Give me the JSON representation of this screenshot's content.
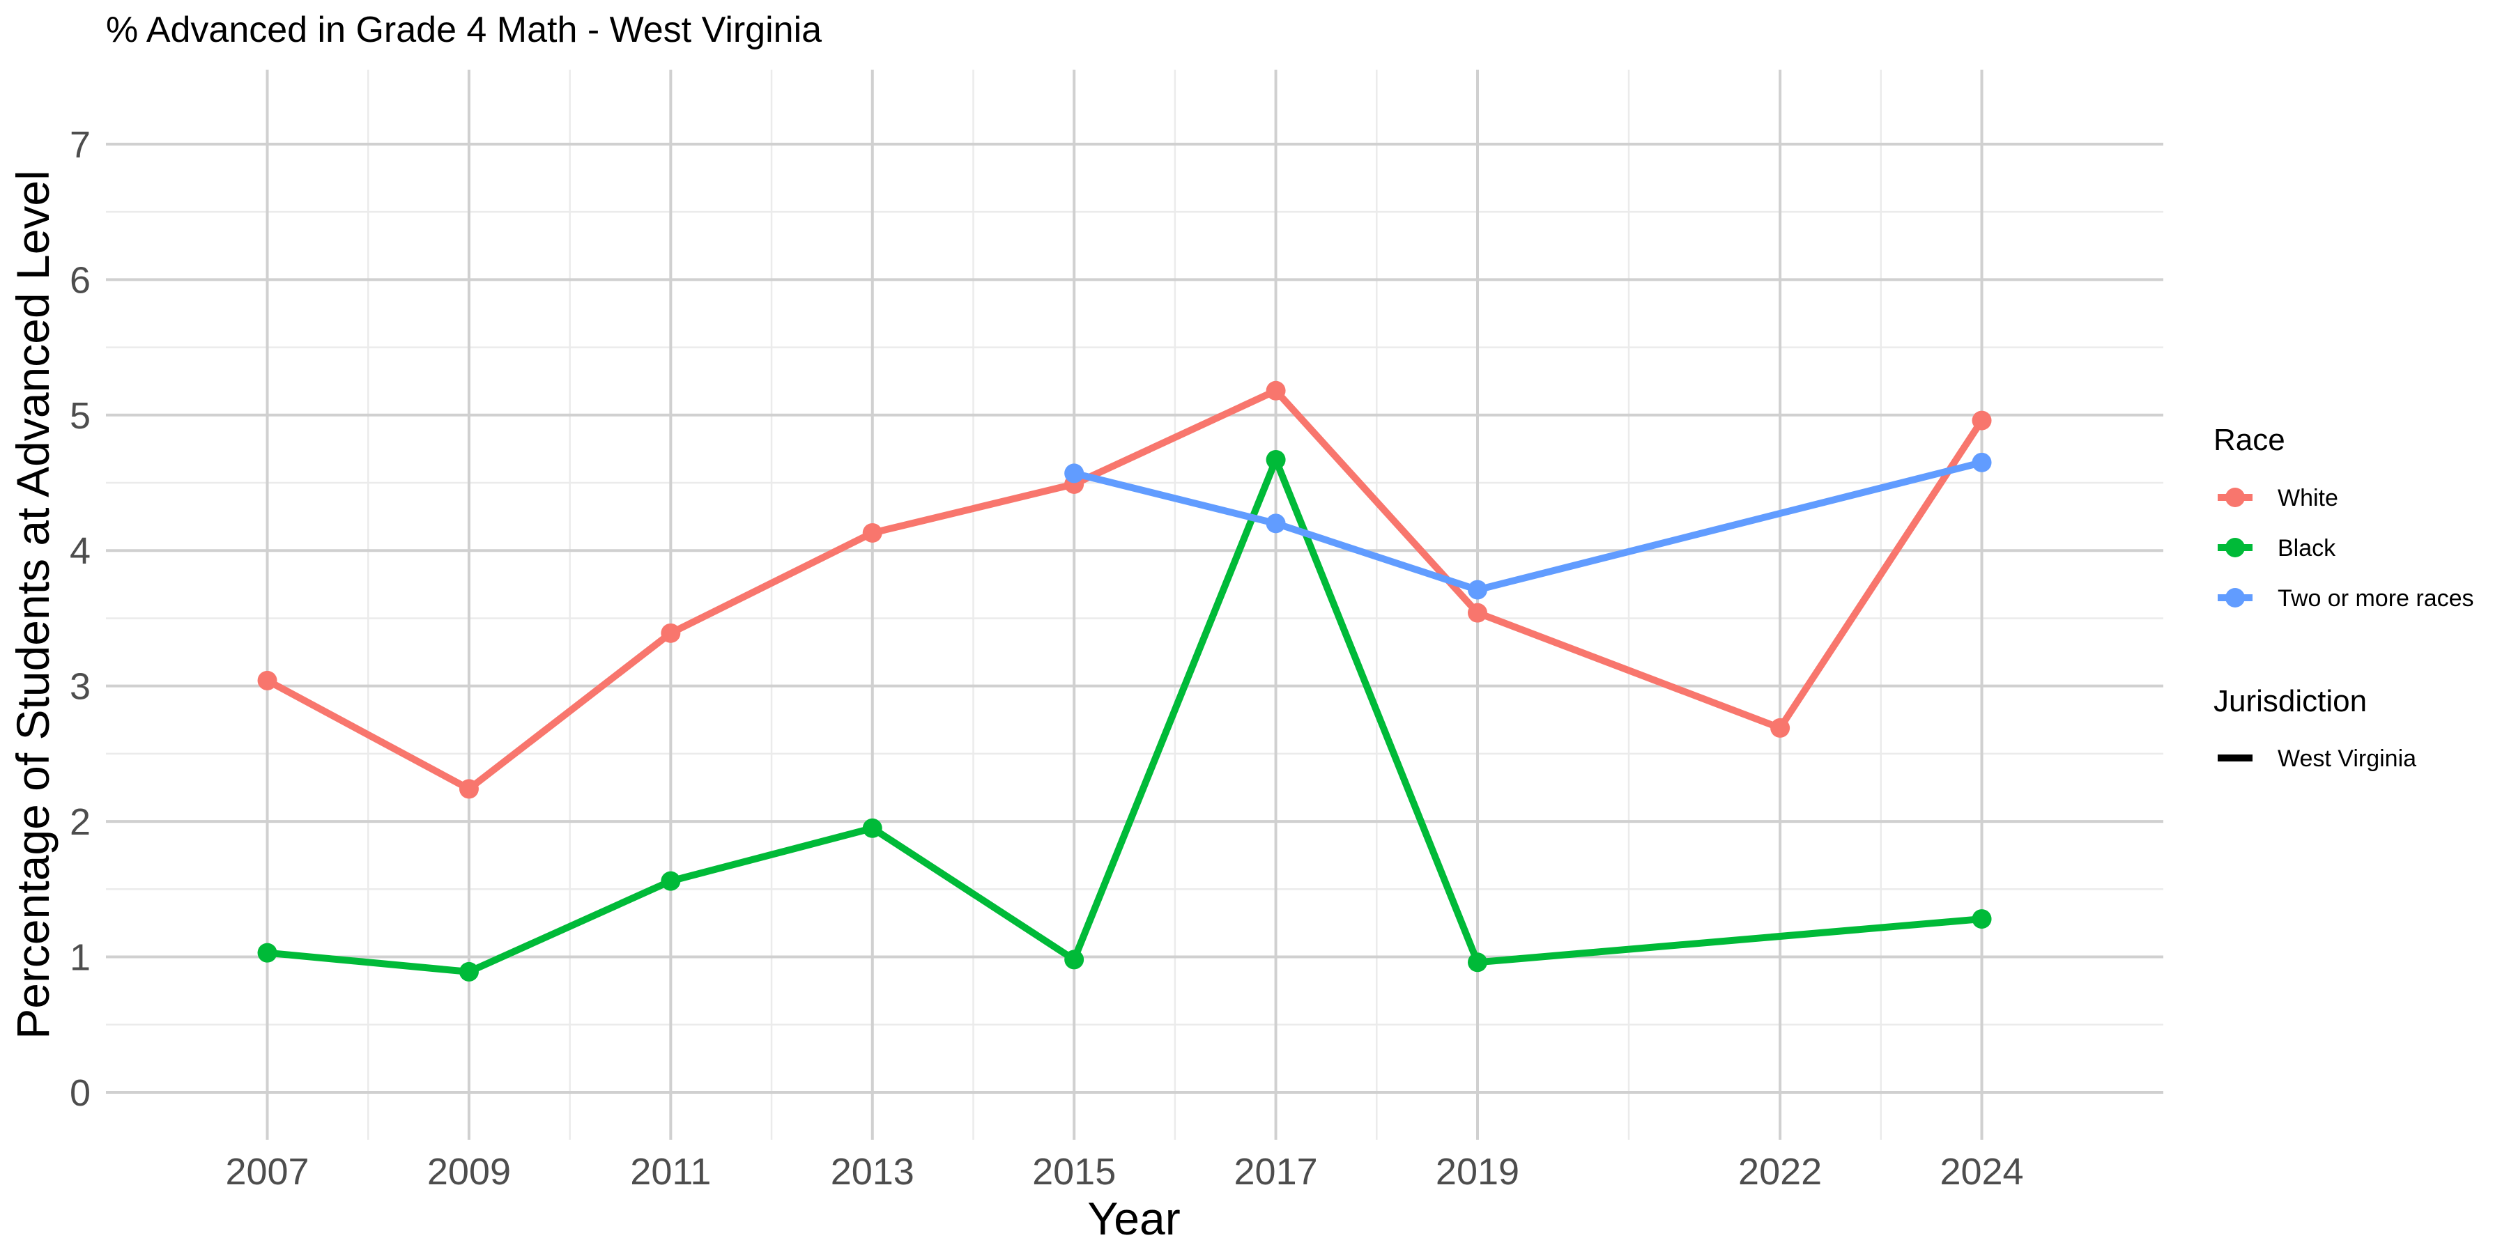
{
  "chart_data": {
    "type": "line",
    "title": "% Advanced in Grade 4 Math - West Virginia",
    "xlabel": "Year",
    "ylabel": "Percentage of Students at Advanced Level",
    "x_ticks": [
      2007,
      2009,
      2011,
      2013,
      2015,
      2017,
      2019,
      2022,
      2024
    ],
    "y_ticks": [
      0,
      1,
      2,
      3,
      4,
      5,
      6,
      7
    ],
    "xlim": [
      2005.4,
      2025.8
    ],
    "ylim": [
      -0.35,
      7.55
    ],
    "grid": true,
    "legend_position": "right",
    "series": [
      {
        "name": "White",
        "color": "#F8766D",
        "points": [
          [
            2007,
            3.04
          ],
          [
            2009,
            2.24
          ],
          [
            2011,
            3.39
          ],
          [
            2013,
            4.13
          ],
          [
            2015,
            4.49
          ],
          [
            2017,
            5.18
          ],
          [
            2019,
            3.54
          ],
          [
            2022,
            2.69
          ],
          [
            2024,
            4.96
          ]
        ]
      },
      {
        "name": "Black",
        "color": "#00BA38",
        "points": [
          [
            2007,
            1.03
          ],
          [
            2009,
            0.89
          ],
          [
            2011,
            1.56
          ],
          [
            2013,
            1.95
          ],
          [
            2015,
            0.98
          ],
          [
            2017,
            4.67
          ],
          [
            2019,
            0.96
          ],
          [
            2024,
            1.28
          ]
        ]
      },
      {
        "name": "Two or more races",
        "color": "#619CFF",
        "points": [
          [
            2015,
            4.57
          ],
          [
            2017,
            4.2
          ],
          [
            2019,
            3.71
          ],
          [
            2024,
            4.65
          ]
        ]
      }
    ],
    "legends": [
      {
        "title": "Race",
        "entries": [
          "White",
          "Black",
          "Two or more races"
        ]
      },
      {
        "title": "Jurisdiction",
        "entries": [
          "West Virginia"
        ],
        "line_color": "#000000"
      }
    ]
  }
}
